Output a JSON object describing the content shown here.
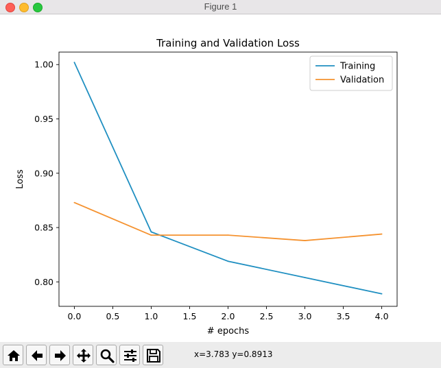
{
  "window": {
    "title": "Figure 1"
  },
  "toolbar": {
    "buttons": [
      {
        "name": "home-icon"
      },
      {
        "name": "back-arrow-icon"
      },
      {
        "name": "forward-arrow-icon"
      },
      {
        "name": "pan-move-icon"
      },
      {
        "name": "zoom-magnifier-icon"
      },
      {
        "name": "subplots-sliders-icon"
      },
      {
        "name": "save-disk-icon"
      }
    ],
    "coordinates": "x=3.783 y=0.8913"
  },
  "chart_data": {
    "type": "line",
    "title": "Training and Validation Loss",
    "xlabel": "# epochs",
    "ylabel": "Loss",
    "x": [
      0,
      1,
      2,
      3,
      4
    ],
    "series": [
      {
        "name": "Training",
        "color": "#1f8fc1",
        "values": [
          1.002,
          0.846,
          0.819,
          0.804,
          0.789
        ]
      },
      {
        "name": "Validation",
        "color": "#f5922f",
        "values": [
          0.873,
          0.843,
          0.843,
          0.838,
          0.844
        ]
      }
    ],
    "xlim": [
      -0.2,
      4.2
    ],
    "ylim": [
      0.7775,
      1.0115
    ],
    "xticks": [
      "0.0",
      "0.5",
      "1.0",
      "1.5",
      "2.0",
      "2.5",
      "3.0",
      "3.5",
      "4.0"
    ],
    "yticks": [
      "0.80",
      "0.85",
      "0.90",
      "0.95",
      "1.00"
    ],
    "grid": false,
    "legend": "top-right"
  }
}
